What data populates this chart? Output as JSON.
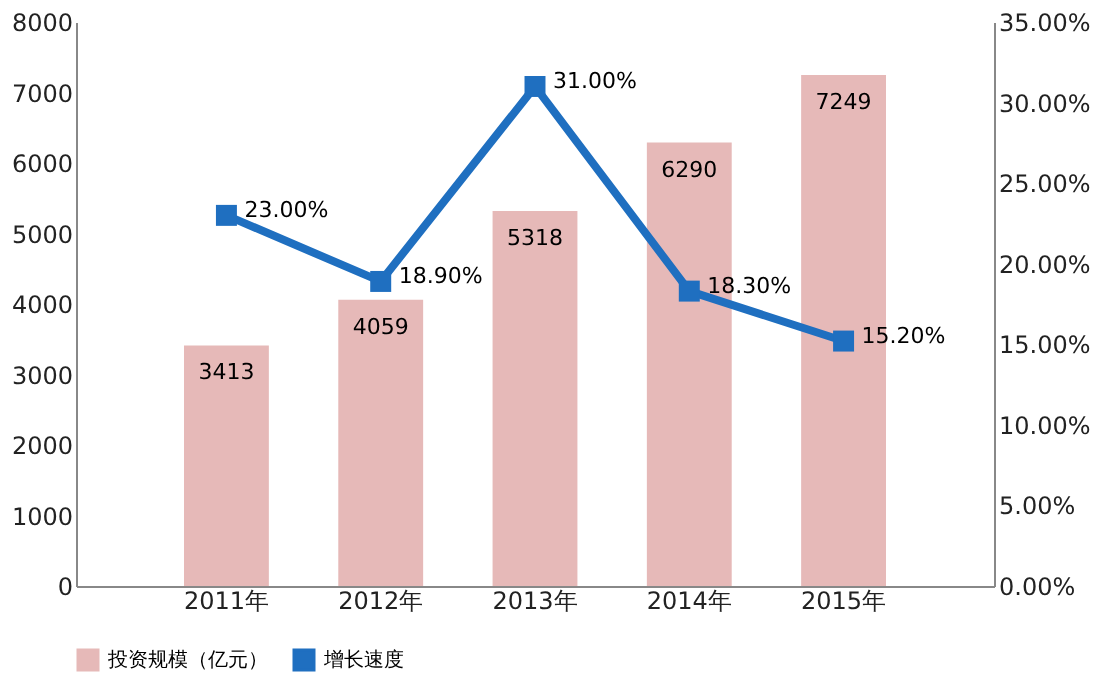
{
  "chart_data": {
    "type": "bar",
    "categories": [
      "2011年",
      "2012年",
      "2013年",
      "2014年",
      "2015年"
    ],
    "series": [
      {
        "name": "投资规模（亿元）",
        "color": "#e6b9b8",
        "values": [
          3413,
          4059,
          5318,
          6290,
          7249
        ],
        "value_labels": [
          "3413",
          "4059",
          "5318",
          "6290",
          "7249"
        ]
      },
      {
        "name": "增长速度",
        "type": "line",
        "axis": "y2",
        "color": "#1f6fc0",
        "values": [
          23.0,
          18.9,
          31.0,
          18.3,
          15.2
        ],
        "value_labels": [
          "23.00%",
          "18.90%",
          "31.00%",
          "18.30%",
          "15.20%"
        ]
      }
    ],
    "ylim": [
      0,
      8000
    ],
    "yticks": [
      0,
      1000,
      2000,
      3000,
      4000,
      5000,
      6000,
      7000,
      8000
    ],
    "y2lim": [
      0,
      35
    ],
    "y2ticks": [
      {
        "value": 0,
        "label": "0.00%"
      },
      {
        "value": 5,
        "label": "5.00%"
      },
      {
        "value": 10,
        "label": "10.00%"
      },
      {
        "value": 15,
        "label": "15.00%"
      },
      {
        "value": 20,
        "label": "20.00%"
      },
      {
        "value": 25,
        "label": "25.00%"
      },
      {
        "value": 30,
        "label": "30.00%"
      },
      {
        "value": 35,
        "label": "35.00%"
      }
    ],
    "marker": "square",
    "legend": "bottom"
  }
}
